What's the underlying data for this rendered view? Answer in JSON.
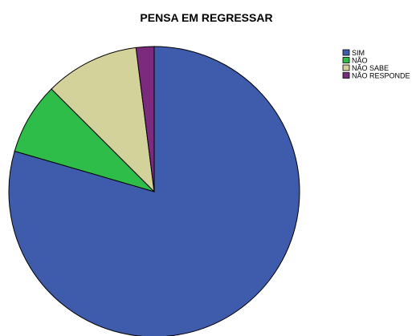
{
  "chart_data": {
    "type": "pie",
    "title": "PENSA EM REGRESSAR",
    "legend_position": "top-right",
    "slices": [
      {
        "label": "SIM",
        "value": 79.5,
        "color": "#3f5bac"
      },
      {
        "label": "NÃO",
        "value": 8.0,
        "color": "#2fbd49"
      },
      {
        "label": "NÃO SABE",
        "value": 10.5,
        "color": "#d4d29b"
      },
      {
        "label": "NÃO RESPONDE",
        "value": 2.0,
        "color": "#7b2a7e"
      }
    ]
  }
}
